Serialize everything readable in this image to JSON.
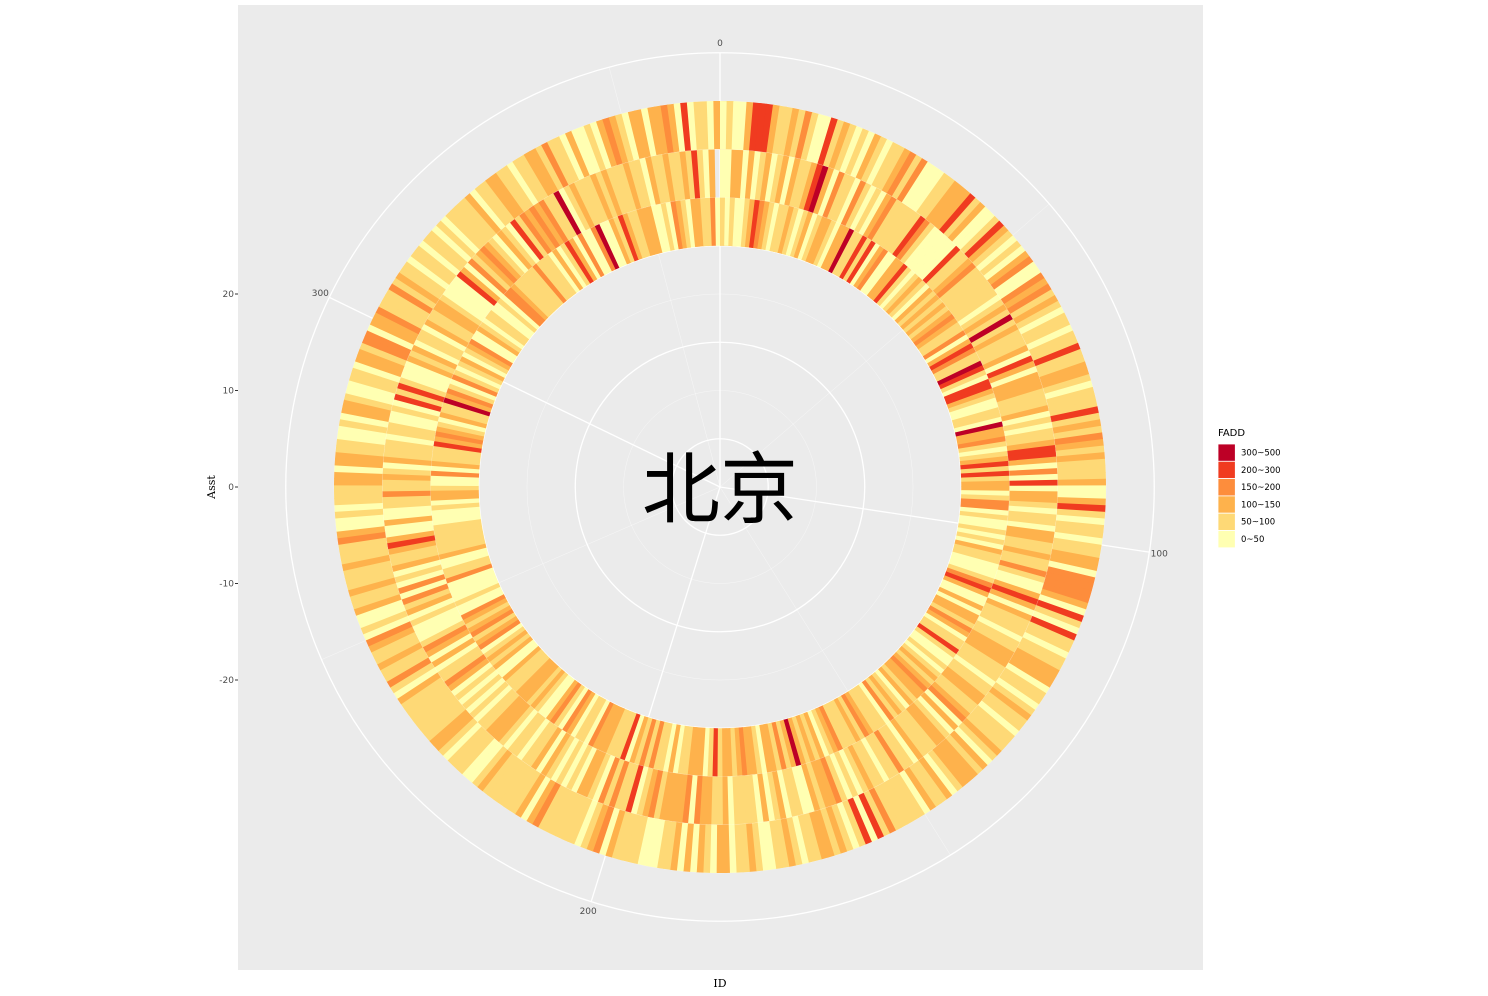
{
  "chart_data": {
    "type": "heatmap",
    "coordinate_system": "polar",
    "center_label": "北京",
    "xlabel": "ID",
    "ylabel": "Asst",
    "theta_axis": {
      "ticks": [
        "0",
        "100",
        "200",
        "300"
      ],
      "range": [
        0,
        365
      ]
    },
    "radial_axis": {
      "ticks": [
        "20",
        "10",
        "0",
        "-10",
        "-20"
      ],
      "range": [
        -25,
        25
      ]
    },
    "ring_levels": [
      0,
      5,
      10,
      15
    ],
    "legend": {
      "title": "FADD",
      "position": "right",
      "items": [
        {
          "label": "300~500",
          "color": "#bd0026"
        },
        {
          "label": "200~300",
          "color": "#f03b20"
        },
        {
          "label": "150~200",
          "color": "#fd8d3c"
        },
        {
          "label": "100~150",
          "color": "#feb24c"
        },
        {
          "label": "50~100",
          "color": "#fed976"
        },
        {
          "label": "0~50",
          "color": "#ffffb2"
        }
      ]
    },
    "series": [
      {
        "ring": 1,
        "category_indices": [
          3,
          3,
          3,
          3,
          5,
          4,
          4,
          2,
          5,
          4,
          5,
          5,
          4,
          3,
          3,
          5,
          4,
          4,
          3,
          5,
          4,
          3,
          3,
          4,
          5,
          3,
          3,
          0,
          4,
          4,
          1,
          4,
          1,
          5,
          3,
          2,
          5,
          5,
          3,
          3,
          1,
          4,
          5,
          4,
          3,
          4,
          5,
          3,
          4,
          3,
          4,
          3,
          4,
          3,
          2,
          3,
          4,
          4,
          2,
          5,
          3,
          1,
          2,
          4,
          4,
          0,
          1,
          4,
          5,
          1,
          1,
          3,
          4,
          5,
          5,
          4,
          4,
          5,
          0,
          3,
          3,
          2,
          4,
          5,
          4,
          3,
          1,
          4,
          1,
          4,
          3,
          3,
          5,
          4,
          2,
          2,
          5,
          4,
          5,
          5,
          4,
          5,
          4,
          5,
          3,
          4,
          4,
          5,
          5,
          5,
          4,
          2,
          1,
          3,
          5,
          5,
          3,
          5,
          3,
          3,
          4,
          2,
          3,
          5,
          4,
          4,
          1,
          4,
          5,
          5,
          4,
          5,
          4,
          3,
          4,
          3,
          2,
          3,
          3,
          4,
          3,
          5,
          4,
          3,
          4,
          2,
          5,
          4,
          4,
          4,
          3,
          2,
          4,
          3,
          4,
          4,
          4,
          2,
          3,
          4,
          5,
          3,
          4,
          3,
          4,
          3,
          0,
          3,
          4,
          2,
          4,
          3,
          3,
          5,
          4,
          3,
          3,
          2,
          3,
          4,
          3,
          3,
          4,
          1,
          4,
          5,
          3,
          3,
          3,
          4,
          4,
          5,
          3,
          5,
          4,
          4,
          2,
          4,
          2,
          4,
          3,
          5,
          1,
          4,
          4,
          4,
          3,
          3,
          3,
          2,
          5,
          4,
          4,
          5,
          3,
          2,
          5,
          4,
          2,
          3,
          5,
          5,
          4,
          3,
          4,
          3,
          3,
          3,
          4,
          4,
          4,
          3,
          5,
          5,
          3,
          4,
          3,
          4,
          5,
          2,
          3,
          4,
          2,
          3,
          4,
          3,
          2,
          5,
          5,
          4,
          5,
          5,
          5,
          5,
          2,
          4,
          4,
          5,
          5,
          3,
          4,
          4,
          4,
          4,
          4,
          4,
          5,
          5,
          5,
          4,
          5,
          3,
          3,
          4,
          5,
          5,
          2,
          5,
          3,
          4,
          4,
          4,
          1,
          3,
          2,
          3,
          4,
          5,
          3,
          4,
          4,
          0,
          3,
          2,
          4,
          5,
          2,
          4,
          5,
          4,
          3,
          5,
          4,
          3,
          2,
          5,
          5,
          3,
          4,
          5,
          4,
          4,
          5,
          5,
          4,
          5,
          2,
          2,
          3,
          4,
          4,
          4,
          4,
          4,
          2,
          4,
          4,
          4,
          5,
          3,
          5,
          4,
          1,
          3,
          5,
          2,
          5,
          5,
          2,
          0,
          5,
          5,
          3,
          4,
          1,
          3,
          4,
          4,
          3,
          3,
          3,
          5,
          5,
          4,
          5,
          2,
          3,
          4,
          5,
          3,
          3,
          4,
          4,
          2,
          5,
          4,
          5,
          4,
          5,
          5,
          4,
          3,
          1,
          2,
          3,
          4,
          5,
          4,
          4,
          3,
          4,
          5
        ]
      },
      {
        "ring": 2,
        "category_indices": [
          5,
          5,
          3,
          3,
          5,
          3,
          5,
          4,
          3,
          5,
          4,
          3,
          5,
          3,
          4,
          4,
          3,
          1,
          0,
          3,
          5,
          2,
          4,
          4,
          5,
          2,
          4,
          5,
          4,
          5,
          3,
          2,
          4,
          4,
          4,
          4,
          4,
          1,
          2,
          4,
          5,
          5,
          5,
          5,
          5,
          1,
          4,
          4,
          3,
          2,
          4,
          4,
          4,
          4,
          4,
          4,
          5,
          4,
          3,
          4,
          0,
          4,
          3,
          4,
          4,
          4,
          3,
          5,
          1,
          3,
          5,
          3,
          3,
          3,
          4,
          4,
          4,
          3,
          5,
          4,
          5,
          4,
          4,
          3,
          1,
          1,
          3,
          5,
          2,
          5,
          1,
          5,
          3,
          3,
          4,
          5,
          4,
          4,
          5,
          3,
          3,
          4,
          4,
          3,
          4,
          4,
          2,
          4,
          5,
          5,
          3,
          1,
          3,
          5,
          3,
          4,
          4,
          4,
          5,
          4,
          4,
          3,
          3,
          3,
          4,
          4,
          4,
          5,
          4,
          4,
          3,
          3,
          4,
          4,
          3,
          2,
          5,
          3,
          5,
          4,
          3,
          3,
          4,
          4,
          4,
          3,
          5,
          4,
          4,
          2,
          4,
          4,
          5,
          4,
          4,
          3,
          4,
          5,
          4,
          5,
          4,
          2,
          3,
          3,
          4,
          3,
          5,
          5,
          4,
          4,
          5,
          3,
          4,
          5,
          3,
          5,
          4,
          4,
          4,
          4,
          5,
          3,
          4,
          4,
          3,
          3,
          2,
          5,
          2,
          3,
          3,
          3,
          3,
          4,
          2,
          3,
          4,
          5,
          1,
          4,
          4,
          2,
          4,
          2,
          5,
          4,
          3,
          3,
          5,
          4,
          5,
          4,
          5,
          4,
          3,
          5,
          3,
          4,
          4,
          5,
          4,
          4,
          5,
          4,
          3,
          3,
          3,
          4,
          4,
          5,
          4,
          5,
          4,
          5,
          4,
          5,
          3,
          2,
          4,
          4,
          5,
          3,
          5,
          3,
          2,
          4,
          5,
          5,
          5,
          4,
          5,
          3,
          4,
          2,
          5,
          2,
          5,
          4,
          5,
          3,
          4,
          4,
          3,
          1,
          3,
          5,
          5,
          3,
          5,
          5,
          4,
          4,
          2,
          4,
          4,
          3,
          4,
          5,
          3,
          4,
          4,
          4,
          5,
          4,
          4,
          5,
          5,
          4,
          5,
          1,
          4,
          1,
          4,
          5,
          5,
          5,
          3,
          4,
          3,
          5,
          4,
          4,
          5,
          3,
          4,
          4,
          3,
          3,
          4,
          5,
          5,
          5,
          5,
          1,
          3,
          5,
          2,
          4,
          3,
          2,
          3,
          4,
          5,
          3,
          4,
          5,
          1,
          4,
          2,
          3,
          2,
          3,
          2,
          4,
          4,
          0,
          5,
          4,
          3,
          4,
          4,
          4,
          3,
          4,
          3,
          4,
          4,
          4,
          3,
          4,
          4,
          5,
          3,
          4,
          4,
          3,
          4,
          4,
          3,
          4,
          1,
          4,
          5,
          3
        ]
      },
      {
        "ring": 3,
        "category_indices": [
          3,
          4,
          5,
          5,
          3,
          1,
          1,
          1,
          3,
          4,
          4,
          3,
          4,
          2,
          4,
          5,
          5,
          1,
          4,
          3,
          4,
          5,
          4,
          5,
          3,
          4,
          5,
          4,
          4,
          3,
          2,
          4,
          2,
          5,
          5,
          5,
          4,
          4,
          3,
          3,
          3,
          1,
          4,
          3,
          5,
          5,
          4,
          1,
          3,
          4,
          5,
          4,
          5,
          3,
          2,
          5,
          5,
          2,
          3,
          2,
          4,
          3,
          4,
          5,
          4,
          4,
          5,
          4,
          4,
          1,
          4,
          4,
          3,
          3,
          4,
          5,
          4,
          4,
          4,
          1,
          4,
          3,
          4,
          2,
          3,
          4,
          3,
          4,
          4,
          4,
          3,
          5,
          5,
          3,
          1,
          4,
          5,
          4,
          4,
          5,
          4,
          4,
          3,
          3,
          5,
          2,
          2,
          2,
          2,
          3,
          5,
          1,
          4,
          5,
          1,
          4,
          4,
          5,
          4,
          4,
          3,
          3,
          3,
          5,
          4,
          4,
          5,
          4,
          3,
          4,
          4,
          5,
          4,
          4,
          4,
          3,
          4,
          5,
          3,
          4,
          3,
          3,
          3,
          4,
          5,
          3,
          4,
          4,
          3,
          5,
          4,
          4,
          4,
          4,
          4,
          2,
          4,
          1,
          5,
          1,
          4,
          5,
          4,
          3,
          4,
          3,
          3,
          4,
          4,
          5,
          4,
          3,
          4,
          4,
          5,
          5,
          4,
          3,
          4,
          4,
          5,
          3,
          3,
          5,
          4,
          3,
          5,
          3,
          5,
          3,
          4,
          4,
          5,
          5,
          5,
          4,
          4,
          4,
          4,
          3,
          5,
          2,
          3,
          4,
          5,
          4,
          4,
          4,
          4,
          4,
          4,
          2,
          3,
          5,
          3,
          4,
          4,
          4,
          4,
          4,
          4,
          3,
          4,
          5,
          5,
          4,
          4,
          4,
          5,
          4,
          3,
          3,
          4,
          4,
          4,
          4,
          4,
          4,
          4,
          3,
          5,
          4,
          2,
          4,
          4,
          3,
          4,
          4,
          3,
          2,
          5,
          4,
          5,
          5,
          3,
          4,
          4,
          3,
          4,
          4,
          4,
          3,
          4,
          4,
          4,
          2,
          3,
          5,
          5,
          4,
          5,
          4,
          4,
          4,
          3,
          3,
          5,
          3,
          3,
          4,
          4,
          5,
          5,
          4,
          5,
          3,
          3,
          4,
          5,
          5,
          4,
          4,
          5,
          3,
          3,
          4,
          2,
          2,
          5,
          3,
          3,
          2,
          4,
          4,
          4,
          2,
          4,
          3,
          4,
          4,
          5,
          4,
          4,
          5,
          4,
          4,
          5,
          4,
          5,
          4,
          4,
          4,
          4,
          3,
          5,
          4,
          4,
          3,
          3,
          4,
          4,
          5,
          4,
          4,
          3,
          3,
          4,
          2,
          4,
          4,
          5,
          3,
          5,
          5,
          4,
          5,
          3,
          2,
          3,
          4,
          5,
          3,
          3,
          5,
          3,
          3,
          2,
          3,
          5,
          1,
          5,
          4,
          4,
          5,
          3,
          5,
          4,
          5
        ]
      }
    ]
  }
}
